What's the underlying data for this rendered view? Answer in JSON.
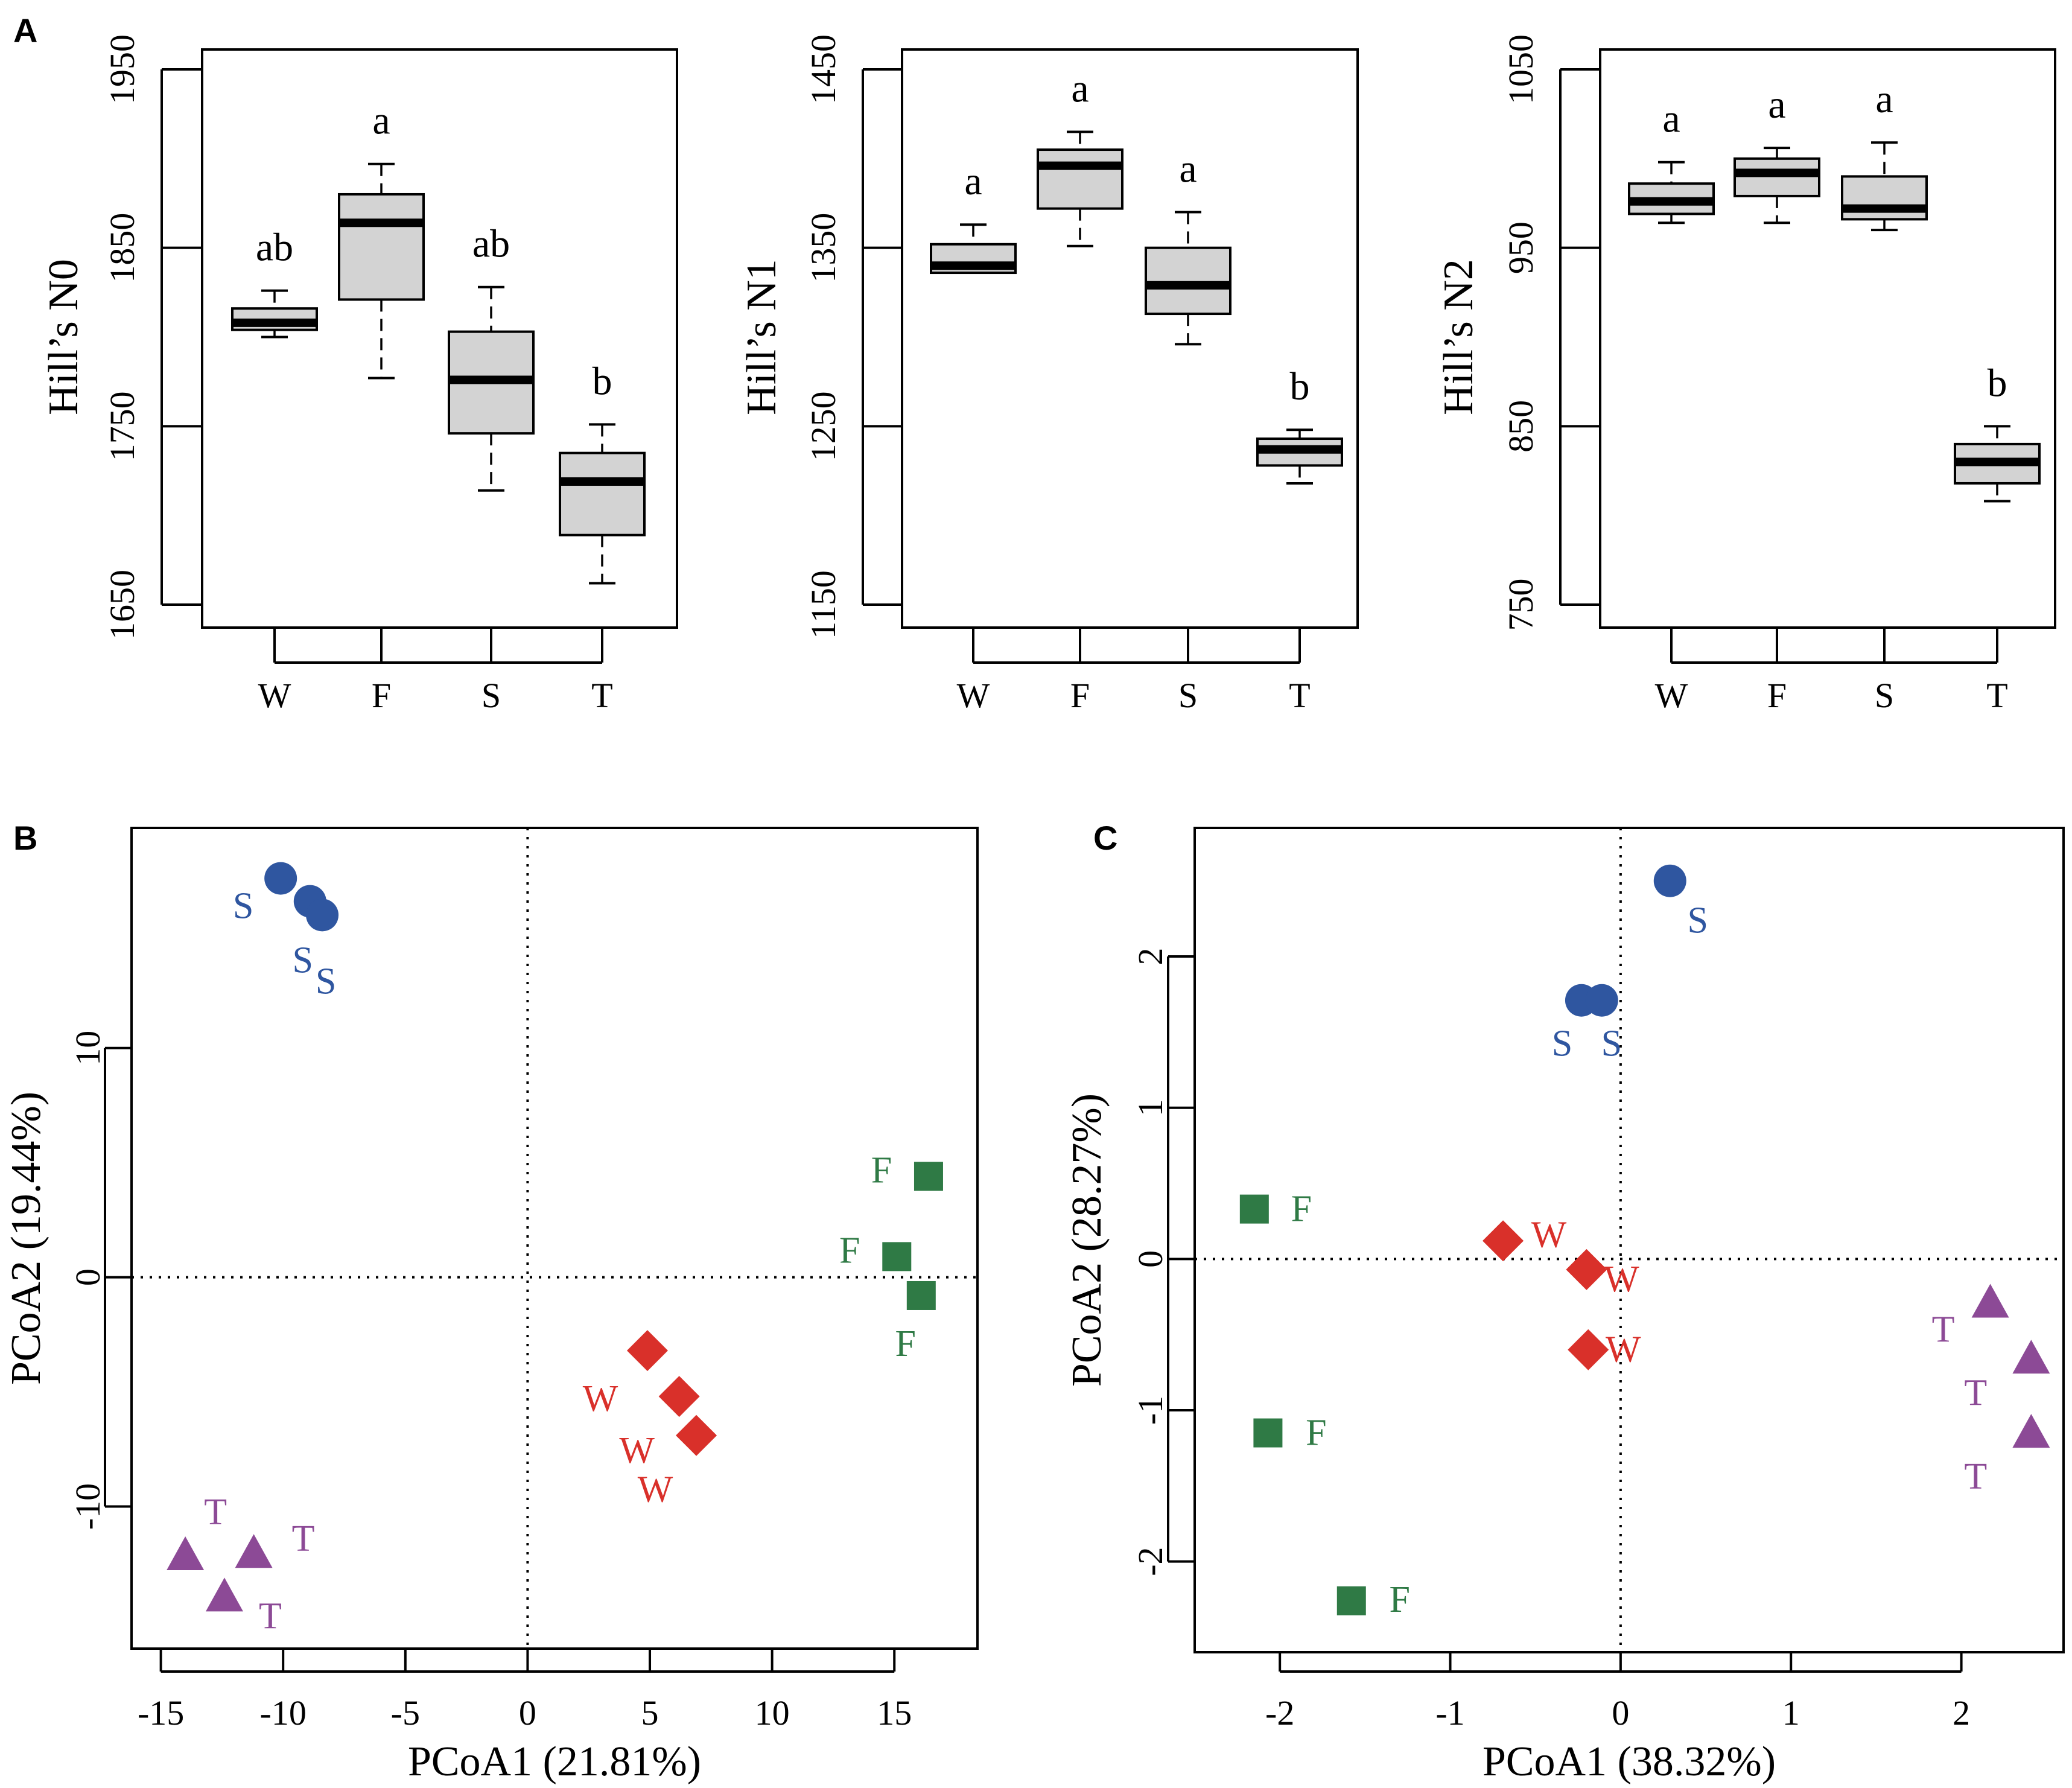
{
  "chart_data": [
    {
      "id": "A1",
      "panel_label": "A",
      "type": "box",
      "categories": [
        "W",
        "F",
        "S",
        "T"
      ],
      "ylabel": "Hill’s N0",
      "ylim": [
        1650,
        1950
      ],
      "yticks": [
        1650,
        1750,
        1850,
        1950
      ],
      "boxes": [
        {
          "category": "W",
          "whisker_low": 1800,
          "q1": 1804,
          "median": 1808,
          "q3": 1816,
          "whisker_high": 1826,
          "sig": "ab"
        },
        {
          "category": "F",
          "whisker_low": 1777,
          "q1": 1821,
          "median": 1864,
          "q3": 1880,
          "whisker_high": 1897,
          "sig": "a"
        },
        {
          "category": "S",
          "whisker_low": 1714,
          "q1": 1746,
          "median": 1776,
          "q3": 1803,
          "whisker_high": 1828,
          "sig": "ab"
        },
        {
          "category": "T",
          "whisker_low": 1662,
          "q1": 1689,
          "median": 1719,
          "q3": 1735,
          "whisker_high": 1751,
          "sig": "b"
        }
      ]
    },
    {
      "id": "A2",
      "panel_label": "",
      "type": "box",
      "categories": [
        "W",
        "F",
        "S",
        "T"
      ],
      "ylabel": "Hill’s N1",
      "ylim": [
        1150,
        1450
      ],
      "yticks": [
        1150,
        1250,
        1350,
        1450
      ],
      "boxes": [
        {
          "category": "W",
          "whisker_low": 1336,
          "q1": 1336,
          "median": 1340,
          "q3": 1352,
          "whisker_high": 1363,
          "sig": "a"
        },
        {
          "category": "F",
          "whisker_low": 1351,
          "q1": 1372,
          "median": 1396,
          "q3": 1405,
          "whisker_high": 1415,
          "sig": "a"
        },
        {
          "category": "S",
          "whisker_low": 1296,
          "q1": 1313,
          "median": 1329,
          "q3": 1350,
          "whisker_high": 1370,
          "sig": "a"
        },
        {
          "category": "T",
          "whisker_low": 1218,
          "q1": 1228,
          "median": 1237,
          "q3": 1243,
          "whisker_high": 1248,
          "sig": "b"
        }
      ]
    },
    {
      "id": "A3",
      "panel_label": "",
      "type": "box",
      "categories": [
        "W",
        "F",
        "S",
        "T"
      ],
      "ylabel": "Hill’s N2",
      "ylim": [
        750,
        1050
      ],
      "yticks": [
        750,
        850,
        950,
        1050
      ],
      "boxes": [
        {
          "category": "W",
          "whisker_low": 964,
          "q1": 969,
          "median": 976,
          "q3": 986,
          "whisker_high": 998,
          "sig": "a"
        },
        {
          "category": "F",
          "whisker_low": 964,
          "q1": 979,
          "median": 992,
          "q3": 1000,
          "whisker_high": 1006,
          "sig": "a"
        },
        {
          "category": "S",
          "whisker_low": 960,
          "q1": 966,
          "median": 972,
          "q3": 990,
          "whisker_high": 1009,
          "sig": "a"
        },
        {
          "category": "T",
          "whisker_low": 808,
          "q1": 818,
          "median": 830,
          "q3": 840,
          "whisker_high": 850,
          "sig": "b"
        }
      ]
    },
    {
      "id": "B",
      "panel_label": "B",
      "type": "scatter",
      "xlabel": "PCoA1 (21.81%)",
      "ylabel": "PCoA2 (19.44%)",
      "xlim": [
        -16.2,
        18.4
      ],
      "ylim": [
        -16.2,
        19.6
      ],
      "xticks": [
        -15,
        -10,
        -5,
        0,
        5,
        10,
        15
      ],
      "yticks": [
        -10,
        0,
        10
      ],
      "series": [
        {
          "name": "S",
          "shape": "circle",
          "color": "#2f56a0",
          "points": [
            [
              -10.1,
              17.4
            ],
            [
              -8.9,
              16.4
            ],
            [
              -8.4,
              15.8
            ]
          ]
        },
        {
          "name": "F",
          "shape": "square",
          "color": "#2f7a45",
          "points": [
            [
              16.4,
              4.4
            ],
            [
              15.1,
              0.9
            ],
            [
              16.1,
              -0.8
            ]
          ]
        },
        {
          "name": "W",
          "shape": "diamond",
          "color": "#d9302a",
          "points": [
            [
              4.9,
              -3.2
            ],
            [
              6.2,
              -5.2
            ],
            [
              6.9,
              -6.9
            ]
          ]
        },
        {
          "name": "T",
          "shape": "triangle",
          "color": "#8c4a96",
          "points": [
            [
              -14.0,
              -12.2
            ],
            [
              -11.2,
              -12.1
            ],
            [
              -12.4,
              -14.0
            ]
          ]
        }
      ]
    },
    {
      "id": "C",
      "panel_label": "C",
      "type": "scatter",
      "xlabel": "PCoA1 (38.32%)",
      "ylabel": "PCoA2 (28.27%)",
      "xlim": [
        -2.5,
        2.6
      ],
      "ylim": [
        -2.6,
        2.85
      ],
      "xticks": [
        -2,
        -1,
        0,
        1,
        2
      ],
      "yticks": [
        -2,
        -1,
        0,
        1,
        2
      ],
      "series": [
        {
          "name": "S",
          "shape": "circle",
          "color": "#2f56a0",
          "points": [
            [
              0.29,
              2.5
            ],
            [
              -0.23,
              1.71
            ],
            [
              -0.11,
              1.71
            ]
          ]
        },
        {
          "name": "F",
          "shape": "square",
          "color": "#2f7a45",
          "points": [
            [
              -2.15,
              0.33
            ],
            [
              -2.07,
              -1.15
            ],
            [
              -1.58,
              -2.26
            ]
          ]
        },
        {
          "name": "W",
          "shape": "diamond",
          "color": "#d9302a",
          "points": [
            [
              -0.69,
              0.12
            ],
            [
              -0.2,
              -0.07
            ],
            [
              -0.19,
              -0.6
            ]
          ]
        },
        {
          "name": "T",
          "shape": "triangle",
          "color": "#8c4a96",
          "points": [
            [
              2.17,
              -0.3
            ],
            [
              2.41,
              -0.67
            ],
            [
              2.41,
              -1.16
            ]
          ]
        }
      ]
    }
  ]
}
